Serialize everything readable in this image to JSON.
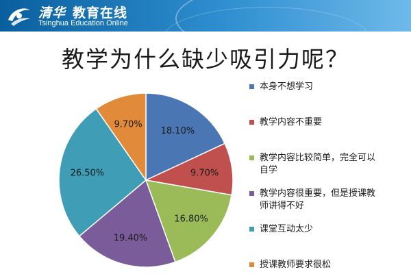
{
  "header": {
    "brand_cn": "教育在线",
    "brand_en": "Tsinghua Education Online",
    "logo_glyph_text": "清华"
  },
  "colors": {
    "banner_start": "#0a5f9e",
    "banner_end": "#6fb9ea"
  },
  "chart_data": {
    "type": "pie",
    "title": "教学为什么缺少吸引力呢？",
    "legend_position": "right",
    "start_angle_deg": 0,
    "direction": "clockwise",
    "series": [
      {
        "name": "本身不想学习",
        "value": 18.1,
        "label": "18.10%",
        "color": "#4a76b3"
      },
      {
        "name": "教学内容不重要",
        "value": 9.7,
        "label": "9.70%",
        "color": "#c0504d"
      },
      {
        "name": "教学内容比较简单，完全可以自学",
        "value": 16.8,
        "label": "16.80%",
        "color": "#9bbb59"
      },
      {
        "name": "教学内容很重要，但是授课教师讲得不好",
        "value": 19.4,
        "label": "19.40%",
        "color": "#7a5c9a"
      },
      {
        "name": "课堂互动太少",
        "value": 26.5,
        "label": "26.50%",
        "color": "#3f9db5"
      },
      {
        "name": "授课教师要求很松",
        "value": 9.7,
        "label": "9.70%",
        "color": "#e08a3a"
      }
    ]
  }
}
